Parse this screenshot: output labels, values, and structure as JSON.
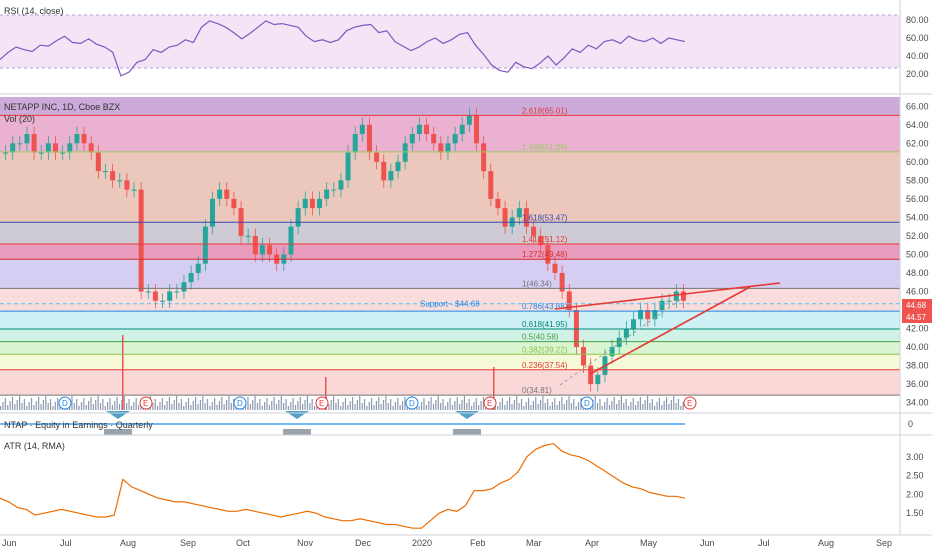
{
  "chart_data": {
    "type": "candlestick",
    "panels": {
      "rsi": {
        "title": "RSI (14, close)",
        "ylim": [
          0,
          100
        ],
        "ticks": [
          "80.00",
          "60.00",
          "40.00",
          "20.00"
        ],
        "band": [
          30,
          70
        ],
        "color": "#7e57c2",
        "values": [
          36,
          44,
          50,
          47,
          45,
          52,
          51,
          57,
          62,
          55,
          54,
          59,
          53,
          50,
          44,
          18,
          22,
          33,
          36,
          47,
          44,
          50,
          52,
          58,
          55,
          72,
          79,
          76,
          72,
          66,
          59,
          65,
          72,
          79,
          75,
          76,
          74,
          72,
          62,
          56,
          58,
          55,
          58,
          68,
          72,
          74,
          75,
          66,
          68,
          56,
          51,
          46,
          50,
          56,
          60,
          54,
          58,
          64,
          66,
          52,
          42,
          30,
          24,
          22,
          33,
          28,
          26,
          32,
          40,
          30,
          38,
          48,
          44,
          52,
          48,
          56,
          58,
          54,
          62,
          58,
          56,
          60,
          54,
          60,
          58,
          56
        ]
      },
      "price": {
        "title": "NETAPP INC, 1D, Cboe BZX",
        "volume_label": "Vol (20)",
        "ylim": [
          33.2,
          67.0
        ],
        "ticks": [
          "66.00",
          "64.00",
          "62.00",
          "60.00",
          "58.00",
          "56.00",
          "54.00",
          "52.00",
          "50.00",
          "48.00",
          "46.00",
          "44.00",
          "42.00",
          "40.00",
          "38.00",
          "36.00",
          "34.00"
        ],
        "last_price": "44.68",
        "prev_price": "44.57",
        "support_label": "Support - $44.68",
        "support_value": 44.68,
        "close": [
          61,
          62,
          62,
          63,
          61,
          61,
          62,
          61,
          61,
          62,
          63,
          62,
          61,
          59,
          59,
          58,
          58,
          57,
          57,
          46,
          46,
          45,
          45,
          46,
          46,
          47,
          48,
          49,
          53,
          56,
          57,
          56,
          55,
          52,
          52,
          50,
          51,
          50,
          49,
          50,
          53,
          55,
          56,
          55,
          56,
          57,
          57,
          58,
          61,
          63,
          64,
          61,
          60,
          58,
          59,
          60,
          62,
          63,
          64,
          63,
          62,
          61,
          62,
          63,
          64,
          65,
          62,
          59,
          56,
          55,
          53,
          54,
          55,
          53,
          52,
          51,
          49,
          48,
          46,
          44,
          40,
          38,
          36,
          37,
          39,
          40,
          41,
          42,
          43,
          44,
          43,
          44,
          45,
          45,
          46,
          45
        ]
      },
      "equity": {
        "title": "NTAP · Equity in Earnings · Quarterly",
        "tick": "0"
      },
      "atr": {
        "title": "ATR (14, RMA)",
        "ylim": [
          1.0,
          3.5
        ],
        "ticks": [
          "3.00",
          "2.50",
          "2.00",
          "1.50"
        ],
        "color": "#ef6c00",
        "values": [
          1.9,
          1.8,
          1.65,
          1.6,
          1.45,
          1.5,
          1.55,
          1.6,
          1.55,
          1.5,
          1.45,
          1.4,
          1.4,
          1.45,
          2.4,
          2.2,
          2.1,
          2.0,
          1.9,
          1.85,
          1.8,
          1.8,
          1.75,
          1.7,
          1.65,
          1.6,
          1.55,
          1.55,
          1.6,
          1.55,
          1.5,
          1.45,
          1.4,
          1.45,
          1.5,
          1.55,
          1.5,
          1.4,
          1.35,
          1.3,
          1.3,
          1.35,
          1.3,
          1.25,
          1.2,
          1.2,
          1.15,
          1.1,
          1.1,
          1.3,
          1.5,
          1.6,
          1.55,
          1.7,
          2.1,
          2.1,
          2.15,
          2.3,
          2.4,
          2.6,
          3.0,
          3.2,
          3.3,
          3.35,
          3.15,
          3.05,
          3.0,
          2.9,
          2.75,
          2.6,
          2.45,
          2.3,
          2.2,
          2.15,
          2.05,
          2.0,
          1.95,
          1.95,
          1.9
        ]
      }
    },
    "fibonacci": [
      {
        "label": "2.618(65.01)",
        "value": 65.01,
        "color": "#e53935"
      },
      {
        "label": "1.988(61.08)",
        "value": 61.08,
        "color": "#9ccc65"
      },
      {
        "label": "1.618(53.47)",
        "value": 53.47,
        "color": "#3949ab"
      },
      {
        "label": "1.414(51.12)",
        "value": 51.12,
        "color": "#e53935"
      },
      {
        "label": "1.272(49.48)",
        "value": 49.48,
        "color": "#d32f2f"
      },
      {
        "label": "1(46.34)",
        "value": 46.34,
        "color": "#757575"
      },
      {
        "label": "0.786(43.88)",
        "value": 43.88,
        "color": "#1e88e5"
      },
      {
        "label": "0.618(41.95)",
        "value": 41.95,
        "color": "#00897b"
      },
      {
        "label": "0.5(40.58)",
        "value": 40.58,
        "color": "#43a047"
      },
      {
        "label": "0.382(39.22)",
        "value": 39.22,
        "color": "#8bc34a"
      },
      {
        "label": "0.236(37.54)",
        "value": 37.54,
        "color": "#e53935"
      },
      {
        "label": "0(34.81)",
        "value": 34.81,
        "color": "#757575"
      }
    ],
    "fib_bands": [
      {
        "from": 67.0,
        "to": 65.01,
        "color": "#c39bd3"
      },
      {
        "from": 65.01,
        "to": 61.08,
        "color": "#e6a3c9"
      },
      {
        "from": 61.08,
        "to": 53.47,
        "color": "#e9bdb0"
      },
      {
        "from": 53.47,
        "to": 51.12,
        "color": "#c7c2cc"
      },
      {
        "from": 51.12,
        "to": 49.48,
        "color": "#e58bb2"
      },
      {
        "from": 49.48,
        "to": 46.34,
        "color": "#cfc6f0"
      },
      {
        "from": 46.34,
        "to": 43.88,
        "color": "#f8d7d7"
      },
      {
        "from": 43.88,
        "to": 41.95,
        "color": "#c7eef3"
      },
      {
        "from": 41.95,
        "to": 40.58,
        "color": "#c9f0e3"
      },
      {
        "from": 40.58,
        "to": 39.22,
        "color": "#d4f3c9"
      },
      {
        "from": 39.22,
        "to": 37.54,
        "color": "#f4f8d0"
      },
      {
        "from": 37.54,
        "to": 34.81,
        "color": "#f9d1d1"
      }
    ],
    "x_ticks": [
      "Jun",
      "Jul",
      "Aug",
      "Sep",
      "Oct",
      "Nov",
      "Dec",
      "2020",
      "Feb",
      "Mar",
      "Apr",
      "May",
      "Jun",
      "Jul",
      "Aug",
      "Sep"
    ],
    "events": [
      {
        "label": "D",
        "kind": "dividend"
      },
      {
        "label": "E",
        "kind": "earnings"
      },
      {
        "label": "D",
        "kind": "dividend"
      },
      {
        "label": "E",
        "kind": "earnings"
      },
      {
        "label": "D",
        "kind": "dividend"
      },
      {
        "label": "E",
        "kind": "earnings"
      },
      {
        "label": "D",
        "kind": "dividend"
      },
      {
        "label": "E",
        "kind": "earnings"
      }
    ],
    "colors": {
      "up": "#26a69a",
      "down": "#ef5350",
      "volume": "#5b6f8f",
      "trend": "#e53935",
      "last_price_bg": "#ef5350"
    }
  }
}
